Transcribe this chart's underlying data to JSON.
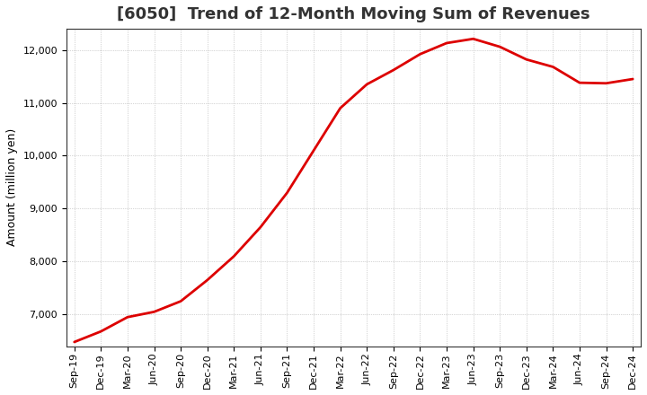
{
  "title": "[6050]  Trend of 12-Month Moving Sum of Revenues",
  "ylabel": "Amount (million yen)",
  "line_color": "#dd0000",
  "line_width": 2.0,
  "background_color": "#ffffff",
  "grid_color": "#999999",
  "ylim": [
    6400,
    12400
  ],
  "yticks": [
    7000,
    8000,
    9000,
    10000,
    11000,
    12000
  ],
  "values": [
    6480,
    6680,
    6950,
    7050,
    7250,
    7650,
    8100,
    8650,
    9300,
    10100,
    10900,
    11350,
    11620,
    11920,
    12130,
    12210,
    12060,
    11820,
    11680,
    11380,
    11370,
    11450
  ],
  "xtick_labels": [
    "Sep-19",
    "Dec-19",
    "Mar-20",
    "Jun-20",
    "Sep-20",
    "Dec-20",
    "Mar-21",
    "Jun-21",
    "Sep-21",
    "Dec-21",
    "Mar-22",
    "Jun-22",
    "Sep-22",
    "Dec-22",
    "Mar-23",
    "Jun-23",
    "Sep-23",
    "Dec-23",
    "Mar-24",
    "Jun-24",
    "Sep-24",
    "Dec-24"
  ],
  "title_fontsize": 13,
  "tick_fontsize": 8,
  "ylabel_fontsize": 9,
  "title_color": "#333333"
}
